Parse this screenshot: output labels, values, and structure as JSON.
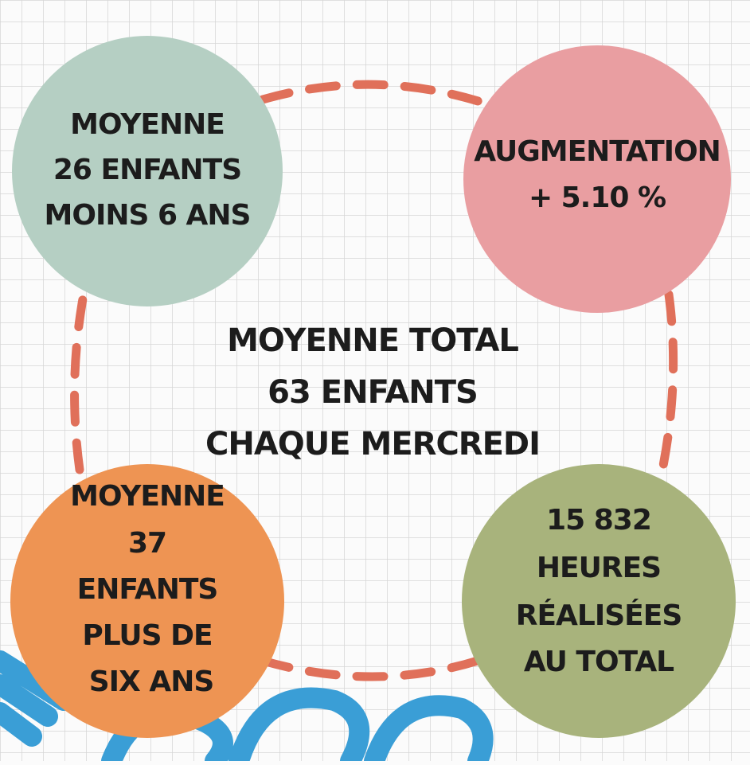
{
  "circles": [
    {
      "lines": [
        "MOYENNE",
        "26 ENFANTS",
        "MOINS 6 ANS"
      ]
    },
    {
      "lines": [
        "AUGMENTATION",
        "+ 5.10 %"
      ]
    },
    {
      "lines": [
        "MOYENNE",
        "37",
        "ENFANTS",
        "PLUS DE",
        "SIX ANS"
      ]
    },
    {
      "lines": [
        "15 832",
        "HEURES",
        "RÉALISÉES",
        "AU TOTAL"
      ]
    }
  ],
  "center": {
    "lines": [
      "MOYENNE TOTAL",
      "63 ENFANTS",
      "CHAQUE MERCREDI"
    ]
  }
}
